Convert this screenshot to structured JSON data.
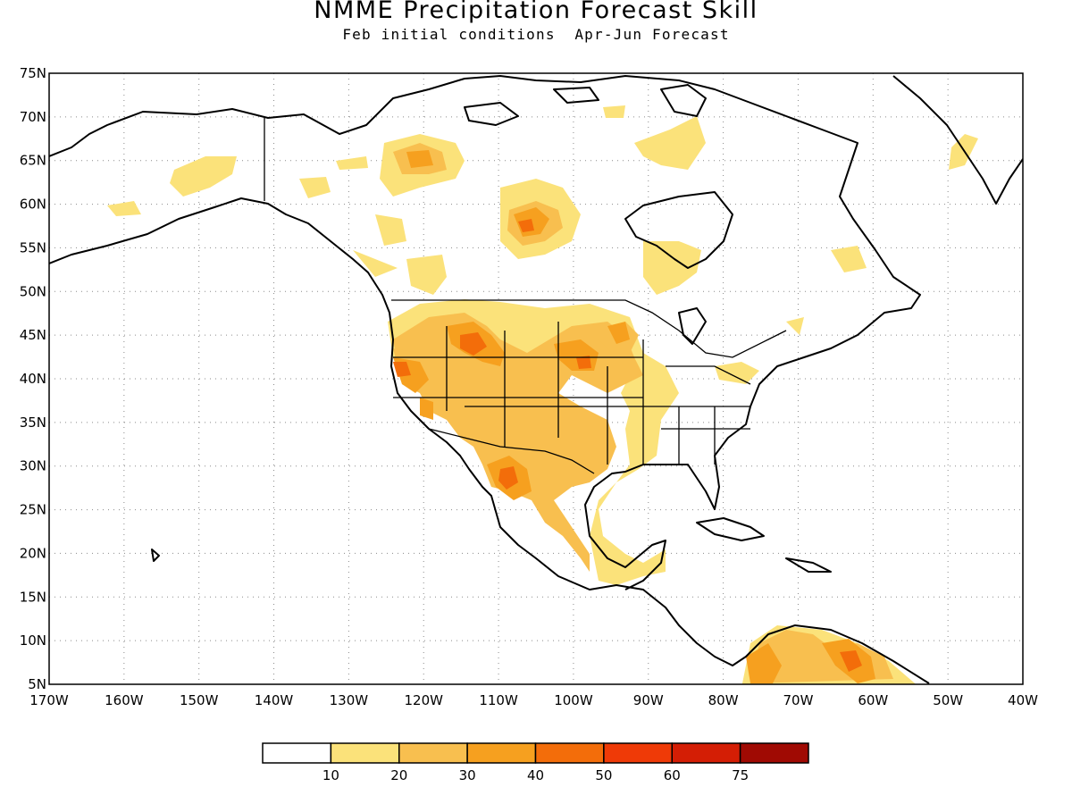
{
  "title": "NMME Precipitation Forecast Skill",
  "subtitle": "Feb initial conditions  Apr-Jun Forecast",
  "colors": {
    "bins": [
      "#ffffff",
      "#fbe27a",
      "#f8bf4f",
      "#f6a01f",
      "#f36d0a",
      "#ef3a07",
      "#d41e05",
      "#a00a03"
    ],
    "outline": "#000000"
  },
  "map": {
    "lat_labels": [
      "75N",
      "70N",
      "65N",
      "60N",
      "55N",
      "50N",
      "45N",
      "40N",
      "35N",
      "30N",
      "25N",
      "20N",
      "15N",
      "10N",
      "5N"
    ],
    "lon_labels": [
      "170W",
      "160W",
      "150W",
      "140W",
      "130W",
      "120W",
      "110W",
      "100W",
      "90W",
      "80W",
      "70W",
      "60W",
      "50W",
      "40W"
    ],
    "lat_values": [
      75,
      70,
      65,
      60,
      55,
      50,
      45,
      40,
      35,
      30,
      25,
      20,
      15,
      10,
      5
    ],
    "lon_values": [
      -170,
      -160,
      -150,
      -140,
      -130,
      -120,
      -110,
      -100,
      -90,
      -80,
      -70,
      -60,
      -50,
      -40
    ],
    "lat_range": [
      5,
      75
    ],
    "lon_range": [
      -170,
      -40
    ]
  },
  "colorbar": {
    "labels": [
      "10",
      "20",
      "30",
      "40",
      "50",
      "60",
      "75"
    ]
  }
}
